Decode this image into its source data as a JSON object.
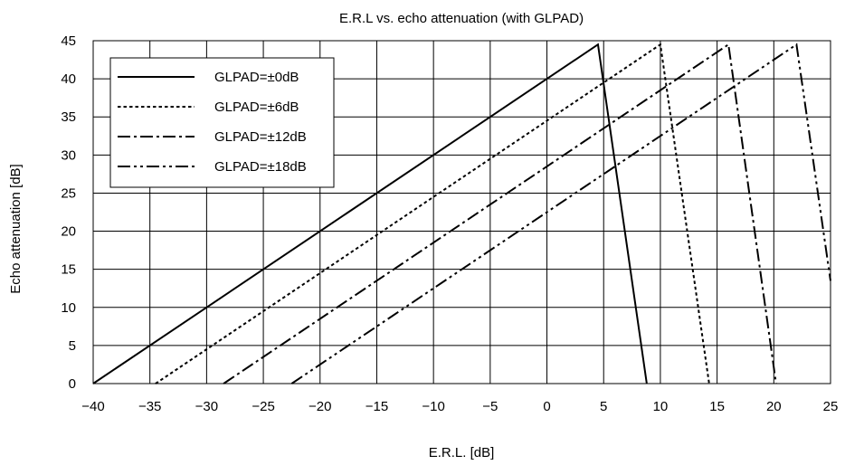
{
  "chart_data": {
    "type": "line",
    "title": "E.R.L vs. echo attenuation (with GLPAD)",
    "xlabel": "E.R.L. [dB]",
    "ylabel": "Echo attenuation [dB]",
    "xlim": [
      -40,
      25
    ],
    "ylim": [
      0,
      45
    ],
    "xticks": [
      -40,
      -35,
      -30,
      -25,
      -20,
      -15,
      -10,
      -5,
      0,
      5,
      10,
      15,
      20,
      25
    ],
    "yticks": [
      0,
      5,
      10,
      15,
      20,
      25,
      30,
      35,
      40,
      45
    ],
    "xtick_labels": [
      "−40",
      "−35",
      "−30",
      "−25",
      "−20",
      "−15",
      "−10",
      "−5",
      "0",
      "5",
      "10",
      "15",
      "20",
      "25"
    ],
    "ytick_labels": [
      "0",
      "5",
      "10",
      "15",
      "20",
      "25",
      "30",
      "35",
      "40",
      "45"
    ],
    "grid": true,
    "legend_position": "top-left",
    "series": [
      {
        "name": "GLPAD=±0dB",
        "dash": "solid",
        "x": [
          -40,
          4.5,
          8.8
        ],
        "y": [
          0,
          44.5,
          0
        ]
      },
      {
        "name": "GLPAD=±6dB",
        "dash": "dotted",
        "x": [
          -34.5,
          10,
          14.3
        ],
        "y": [
          0,
          44.5,
          0
        ]
      },
      {
        "name": "GLPAD=±12dB",
        "dash": "dash-dot",
        "x": [
          -28.5,
          16,
          20.2
        ],
        "y": [
          0,
          44.5,
          0
        ]
      },
      {
        "name": "GLPAD=±18dB",
        "dash": "dash-dot-dot",
        "x": [
          -22.5,
          22,
          25
        ],
        "y": [
          0,
          44.5,
          13.5
        ]
      }
    ],
    "line_color": "#000000"
  }
}
